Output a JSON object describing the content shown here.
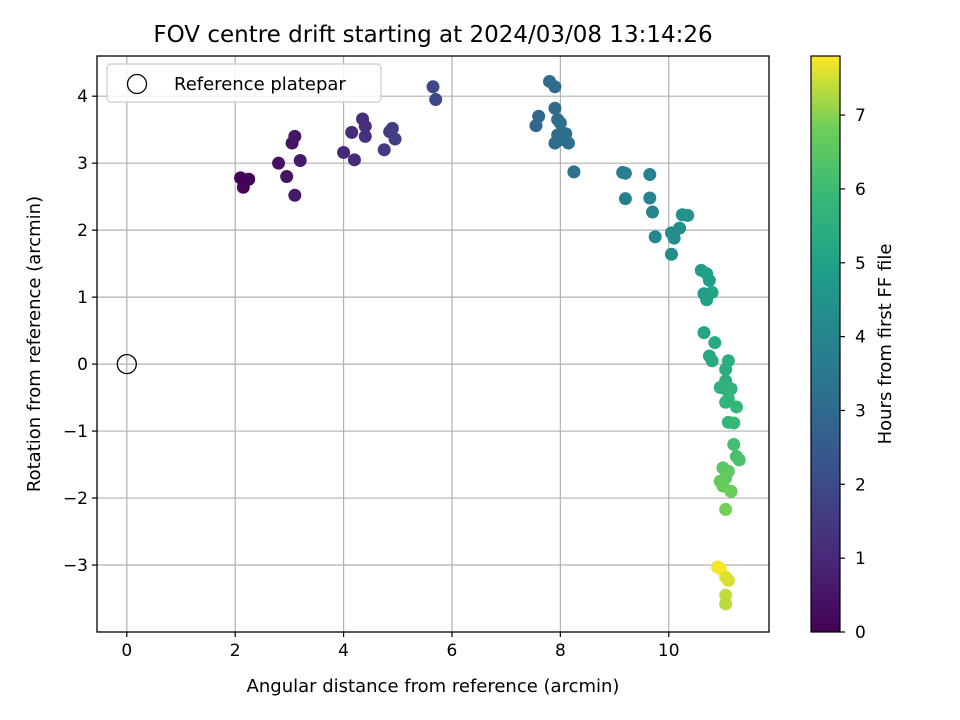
{
  "chart_data": {
    "type": "scatter",
    "title": "FOV centre drift starting at 2024/03/08 13:14:26",
    "xlabel": "Angular distance from reference (arcmin)",
    "ylabel": "Rotation from reference (arcmin)",
    "xlim": [
      -0.55,
      11.85
    ],
    "ylim": [
      -4.0,
      4.6
    ],
    "xticks": [
      0,
      2,
      4,
      6,
      8,
      10
    ],
    "yticks": [
      -3,
      -2,
      -1,
      0,
      1,
      2,
      3,
      4
    ],
    "grid": true,
    "legend": {
      "placement": "top-left",
      "entries": [
        "Reference platepar"
      ]
    },
    "reference_point": {
      "name": "Reference platepar",
      "x": 0,
      "y": 0
    },
    "colorbar": {
      "label": "Hours from first FF file",
      "colormap": "viridis",
      "range": [
        0,
        7.8
      ],
      "ticks": [
        0,
        1,
        2,
        3,
        4,
        5,
        6,
        7
      ]
    },
    "series": [
      {
        "name": "",
        "points": [
          [
            2.1,
            2.78,
            0.0
          ],
          [
            2.25,
            2.76,
            0.05
          ],
          [
            2.15,
            2.64,
            0.1
          ],
          [
            2.8,
            3.0,
            0.4
          ],
          [
            2.95,
            2.8,
            0.45
          ],
          [
            3.05,
            3.3,
            0.5
          ],
          [
            3.1,
            3.4,
            0.55
          ],
          [
            3.1,
            2.52,
            0.6
          ],
          [
            3.2,
            3.04,
            0.65
          ],
          [
            4.0,
            3.16,
            1.0
          ],
          [
            4.15,
            3.46,
            1.05
          ],
          [
            4.2,
            3.05,
            1.1
          ],
          [
            4.35,
            3.66,
            1.15
          ],
          [
            4.4,
            3.55,
            1.2
          ],
          [
            4.4,
            3.4,
            1.25
          ],
          [
            4.75,
            3.2,
            1.5
          ],
          [
            4.85,
            3.47,
            1.55
          ],
          [
            4.9,
            3.52,
            1.6
          ],
          [
            4.95,
            3.36,
            1.65
          ],
          [
            5.65,
            4.14,
            1.9
          ],
          [
            5.7,
            3.95,
            1.95
          ],
          [
            7.55,
            3.56,
            2.9
          ],
          [
            7.6,
            3.7,
            2.95
          ],
          [
            7.8,
            4.22,
            3.0
          ],
          [
            7.9,
            4.14,
            3.05
          ],
          [
            7.9,
            3.82,
            3.05
          ],
          [
            7.95,
            3.65,
            3.1
          ],
          [
            7.95,
            3.42,
            3.1
          ],
          [
            7.9,
            3.3,
            3.15
          ],
          [
            8.0,
            3.6,
            3.15
          ],
          [
            8.0,
            3.35,
            3.2
          ],
          [
            8.1,
            3.44,
            3.2
          ],
          [
            8.15,
            3.3,
            3.25
          ],
          [
            8.25,
            2.87,
            3.3
          ],
          [
            9.15,
            2.86,
            3.7
          ],
          [
            9.2,
            2.85,
            3.75
          ],
          [
            9.2,
            2.47,
            3.8
          ],
          [
            9.65,
            2.83,
            3.9
          ],
          [
            9.65,
            2.48,
            3.95
          ],
          [
            9.7,
            2.27,
            4.0
          ],
          [
            9.75,
            1.9,
            4.05
          ],
          [
            10.05,
            1.96,
            4.2
          ],
          [
            10.05,
            1.64,
            4.25
          ],
          [
            10.1,
            1.88,
            4.3
          ],
          [
            10.2,
            2.03,
            4.35
          ],
          [
            10.25,
            2.23,
            4.4
          ],
          [
            10.35,
            2.22,
            4.45
          ],
          [
            10.6,
            1.4,
            4.8
          ],
          [
            10.65,
            1.05,
            4.85
          ],
          [
            10.7,
            1.35,
            4.9
          ],
          [
            10.75,
            1.25,
            4.95
          ],
          [
            10.7,
            0.96,
            5.0
          ],
          [
            10.8,
            1.07,
            5.05
          ],
          [
            10.65,
            0.47,
            5.2
          ],
          [
            10.75,
            0.12,
            5.25
          ],
          [
            10.85,
            0.32,
            5.3
          ],
          [
            10.8,
            0.05,
            5.35
          ],
          [
            11.05,
            -0.08,
            5.45
          ],
          [
            11.1,
            0.05,
            5.5
          ],
          [
            11.05,
            -0.25,
            5.5
          ],
          [
            10.95,
            -0.35,
            5.6
          ],
          [
            11.05,
            -0.37,
            5.65
          ],
          [
            11.15,
            -0.37,
            5.7
          ],
          [
            11.05,
            -0.57,
            5.7
          ],
          [
            11.1,
            -0.52,
            5.75
          ],
          [
            11.25,
            -0.64,
            5.8
          ],
          [
            11.1,
            -0.87,
            5.85
          ],
          [
            11.2,
            -0.88,
            5.9
          ],
          [
            11.2,
            -1.2,
            6.1
          ],
          [
            11.25,
            -1.38,
            6.2
          ],
          [
            11.3,
            -1.43,
            6.25
          ],
          [
            11.0,
            -1.55,
            6.5
          ],
          [
            11.1,
            -1.6,
            6.55
          ],
          [
            11.05,
            -1.7,
            6.6
          ],
          [
            10.95,
            -1.75,
            6.65
          ],
          [
            11.0,
            -1.82,
            6.7
          ],
          [
            11.15,
            -1.9,
            6.75
          ],
          [
            11.05,
            -2.17,
            6.85
          ],
          [
            10.9,
            -3.03,
            7.7
          ],
          [
            10.95,
            -3.05,
            7.75
          ],
          [
            11.05,
            -3.18,
            7.6
          ],
          [
            11.1,
            -3.23,
            7.55
          ],
          [
            11.05,
            -3.45,
            7.4
          ],
          [
            11.05,
            -3.58,
            7.35
          ]
        ]
      }
    ]
  }
}
